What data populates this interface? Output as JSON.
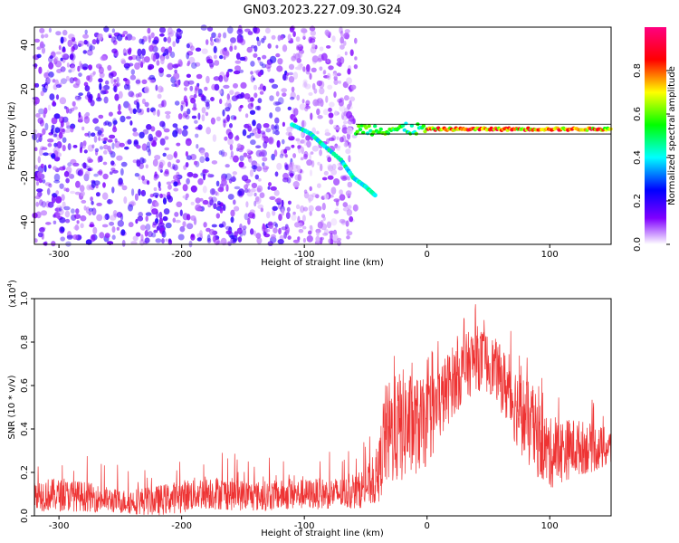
{
  "title": "GN03.2023.227.09.30.G24",
  "chart_data": [
    {
      "type": "heatmap",
      "xlabel": "Height of straight line (km)",
      "ylabel": "Frequency (Hz)",
      "xlim": [
        -320,
        150
      ],
      "ylim": [
        -50,
        48
      ],
      "xticks": [
        -300,
        -200,
        -100,
        0,
        100
      ],
      "yticks": [
        -40,
        -20,
        0,
        20,
        40
      ],
      "colorbar": {
        "label": "Normalized spectral amplitude",
        "range": [
          0.0,
          1.0
        ],
        "ticks": [
          0.0,
          0.2,
          0.4,
          0.6,
          0.8
        ],
        "colors": [
          "#ffffff",
          "#8000ff",
          "#0000ff",
          "#00ffff",
          "#00ff00",
          "#ffff00",
          "#ff0000",
          "#ff0080"
        ]
      },
      "features": [
        {
          "region": "noise",
          "x_range": [
            -320,
            -58
          ],
          "y_range": [
            -50,
            48
          ],
          "amplitude": 0.15
        },
        {
          "region": "descending-trace",
          "points": [
            [
              -110,
              4
            ],
            [
              -95,
              0
            ],
            [
              -85,
              -5
            ],
            [
              -70,
              -12
            ],
            [
              -60,
              -20
            ],
            [
              -50,
              -24
            ],
            [
              -42,
              -28
            ]
          ],
          "amplitude": 0.35
        },
        {
          "region": "steady-line",
          "x_range": [
            -58,
            150
          ],
          "y": 2,
          "amplitude": 0.95
        }
      ]
    },
    {
      "type": "line",
      "xlabel": "Height of straight line (km)",
      "ylabel": "SNR (10 * v/v)",
      "scale_label": "(x10",
      "scale_exp": "4",
      "xlim": [
        -320,
        150
      ],
      "ylim": [
        0.0,
        1.0
      ],
      "xticks": [
        -300,
        -200,
        -100,
        0,
        100
      ],
      "yticks": [
        0.0,
        0.2,
        0.4,
        0.6,
        0.8,
        1.0
      ],
      "series": [
        {
          "color": "#ee3333",
          "envelope": [
            {
              "x": -320,
              "low": 0.02,
              "high": 0.18
            },
            {
              "x": -280,
              "low": 0.02,
              "high": 0.16
            },
            {
              "x": -250,
              "low": 0.01,
              "high": 0.12
            },
            {
              "x": -220,
              "low": 0.0,
              "high": 0.14
            },
            {
              "x": -180,
              "low": 0.03,
              "high": 0.19
            },
            {
              "x": -140,
              "low": 0.02,
              "high": 0.16
            },
            {
              "x": -100,
              "low": 0.03,
              "high": 0.17
            },
            {
              "x": -60,
              "low": 0.03,
              "high": 0.18
            },
            {
              "x": -40,
              "low": 0.05,
              "high": 0.28
            },
            {
              "x": -35,
              "low": 0.12,
              "high": 0.6
            },
            {
              "x": -20,
              "low": 0.15,
              "high": 0.68
            },
            {
              "x": 0,
              "low": 0.22,
              "high": 0.62
            },
            {
              "x": 20,
              "low": 0.45,
              "high": 0.78
            },
            {
              "x": 40,
              "low": 0.58,
              "high": 0.88
            },
            {
              "x": 55,
              "low": 0.55,
              "high": 0.82
            },
            {
              "x": 70,
              "low": 0.35,
              "high": 0.72
            },
            {
              "x": 85,
              "low": 0.2,
              "high": 0.6
            },
            {
              "x": 100,
              "low": 0.12,
              "high": 0.45
            },
            {
              "x": 120,
              "low": 0.18,
              "high": 0.45
            },
            {
              "x": 150,
              "low": 0.22,
              "high": 0.4
            }
          ]
        }
      ]
    }
  ]
}
